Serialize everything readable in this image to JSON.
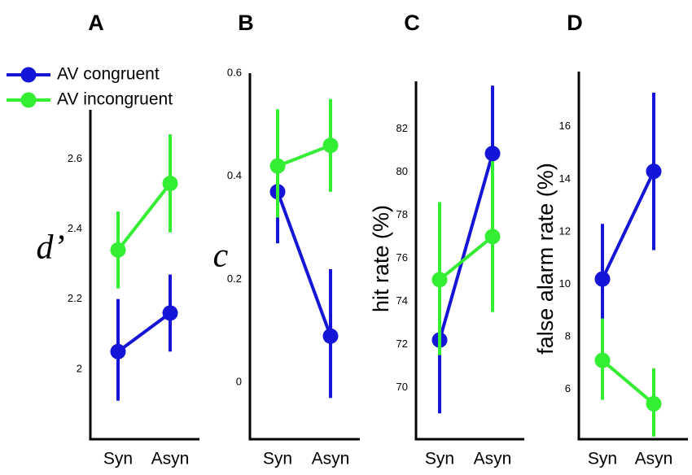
{
  "colors": {
    "congruent": "#1515d8",
    "incongruent": "#33ee33",
    "axis": "#000000"
  },
  "legend": [
    {
      "series": "congruent",
      "label": "AV congruent"
    },
    {
      "series": "incongruent",
      "label": "AV incongruent"
    }
  ],
  "chart_data": [
    {
      "type": "line",
      "panel_label": "A",
      "ylabel": "d’",
      "ylabel_style": "italic",
      "categories": [
        "Syn",
        "Asyn"
      ],
      "ylim": [
        1.8,
        2.74
      ],
      "yticks": [
        2,
        2.2,
        2.4,
        2.6
      ],
      "ytick_labels": [
        "2",
        "2.2",
        "2.4",
        "2.6"
      ],
      "series": [
        {
          "name": "AV congruent",
          "key": "congruent",
          "values": [
            2.05,
            2.16
          ],
          "err_low": [
            1.91,
            2.05
          ],
          "err_high": [
            2.2,
            2.27
          ]
        },
        {
          "name": "AV incongruent",
          "key": "incongruent",
          "values": [
            2.34,
            2.53
          ],
          "err_low": [
            2.23,
            2.39
          ],
          "err_high": [
            2.45,
            2.67
          ]
        }
      ]
    },
    {
      "type": "line",
      "panel_label": "B",
      "ylabel": "c",
      "ylabel_style": "italic",
      "categories": [
        "Syn",
        "Asyn"
      ],
      "ylim": [
        -0.11,
        0.6
      ],
      "yticks": [
        0,
        0.2,
        0.4,
        0.6
      ],
      "ytick_labels": [
        "0",
        "0.2",
        "0.4",
        "0.6"
      ],
      "series": [
        {
          "name": "AV congruent",
          "key": "congruent",
          "values": [
            0.37,
            0.09
          ],
          "err_low": [
            0.27,
            -0.03
          ],
          "err_high": [
            0.37,
            0.22
          ]
        },
        {
          "name": "AV incongruent",
          "key": "incongruent",
          "values": [
            0.42,
            0.46
          ],
          "err_low": [
            0.32,
            0.37
          ],
          "err_high": [
            0.53,
            0.55
          ]
        }
      ]
    },
    {
      "type": "line",
      "panel_label": "C",
      "ylabel": "hit rate (%)",
      "ylabel_style": "plain",
      "categories": [
        "Syn",
        "Asyn"
      ],
      "ylim": [
        67.6,
        84.2
      ],
      "yticks": [
        70,
        72,
        74,
        76,
        78,
        80,
        82
      ],
      "ytick_labels": [
        "70",
        "72",
        "74",
        "76",
        "78",
        "80",
        "82"
      ],
      "series": [
        {
          "name": "AV congruent",
          "key": "congruent",
          "values": [
            72.2,
            80.85
          ],
          "err_low": [
            68.8,
            76.9
          ],
          "err_high": [
            75.0,
            84.0
          ]
        },
        {
          "name": "AV incongruent",
          "key": "incongruent",
          "values": [
            75.0,
            77.0
          ],
          "err_low": [
            71.5,
            73.5
          ],
          "err_high": [
            78.6,
            80.5
          ]
        }
      ]
    },
    {
      "type": "line",
      "panel_label": "D",
      "ylabel": "false alarm rate (%)",
      "ylabel_style": "plain",
      "categories": [
        "Syn",
        "Asyn"
      ],
      "ylim": [
        4.1,
        18.1
      ],
      "yticks": [
        6,
        8,
        10,
        12,
        14,
        16
      ],
      "ytick_labels": [
        "6",
        "8",
        "10",
        "12",
        "14",
        "16"
      ],
      "series": [
        {
          "name": "AV congruent",
          "key": "congruent",
          "values": [
            10.2,
            14.3
          ],
          "err_low": [
            8.2,
            11.3
          ],
          "err_high": [
            12.3,
            17.3
          ]
        },
        {
          "name": "AV incongruent",
          "key": "incongruent",
          "values": [
            7.1,
            5.45
          ],
          "err_low": [
            5.6,
            4.2
          ],
          "err_high": [
            8.7,
            6.8
          ]
        }
      ]
    }
  ]
}
